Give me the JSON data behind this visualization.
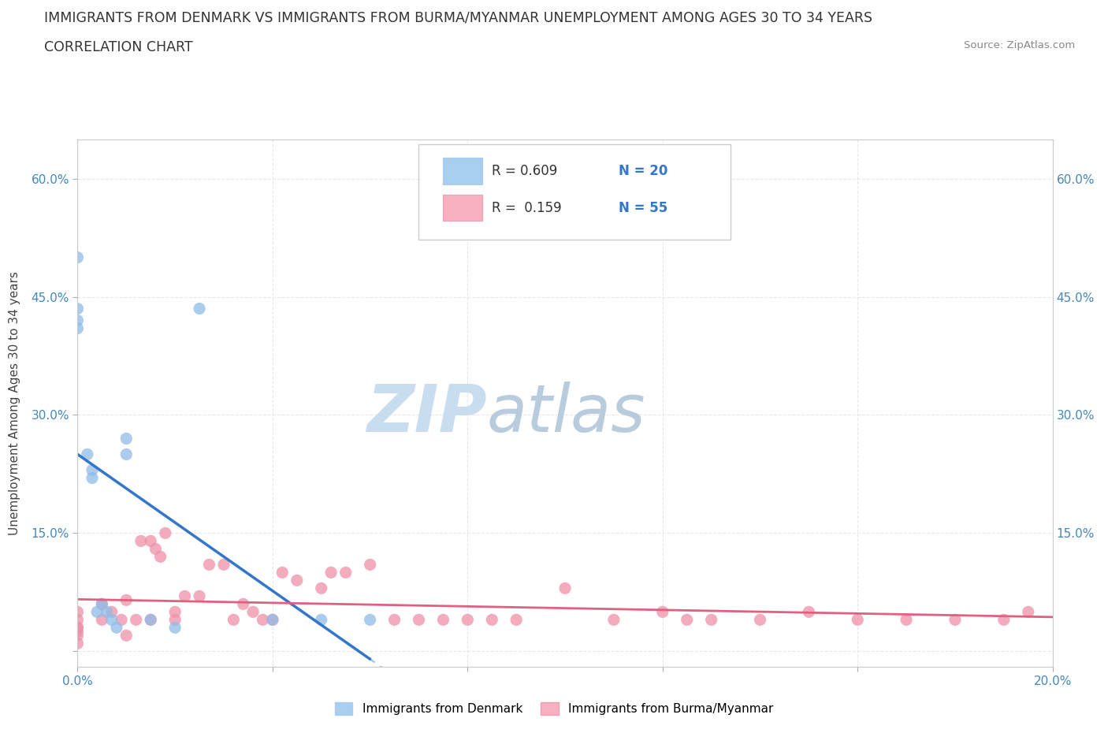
{
  "title_line1": "IMMIGRANTS FROM DENMARK VS IMMIGRANTS FROM BURMA/MYANMAR UNEMPLOYMENT AMONG AGES 30 TO 34 YEARS",
  "title_line2": "CORRELATION CHART",
  "source_text": "Source: ZipAtlas.com",
  "ylabel": "Unemployment Among Ages 30 to 34 years",
  "xlim": [
    0.0,
    0.2
  ],
  "ylim": [
    -0.02,
    0.65
  ],
  "xticks": [
    0.0,
    0.04,
    0.08,
    0.12,
    0.16,
    0.2
  ],
  "yticks": [
    0.0,
    0.15,
    0.3,
    0.45,
    0.6
  ],
  "xticklabels": [
    "0.0%",
    "",
    "",
    "",
    "",
    "20.0%"
  ],
  "yticklabels": [
    "",
    "15.0%",
    "30.0%",
    "45.0%",
    "60.0%"
  ],
  "denmark_scatter_color": "#90bce8",
  "burma_scatter_color": "#f090a8",
  "denmark_line_color": "#3377cc",
  "burma_line_color": "#e06080",
  "trendline_dash_color": "#a0c0e0",
  "watermark_color": "#d8e8f5",
  "grid_color": "#e8e8e8",
  "denmark_legend_color": "#a8cef0",
  "burma_legend_color": "#f8b0c0",
  "denmark_x": [
    0.0,
    0.0,
    0.0,
    0.0,
    0.002,
    0.003,
    0.005,
    0.006,
    0.007,
    0.008,
    0.01,
    0.01,
    0.015,
    0.02,
    0.025,
    0.04,
    0.05,
    0.06,
    0.003,
    0.004
  ],
  "denmark_y": [
    0.5,
    0.42,
    0.41,
    0.435,
    0.25,
    0.22,
    0.06,
    0.05,
    0.04,
    0.03,
    0.25,
    0.27,
    0.04,
    0.03,
    0.435,
    0.04,
    0.04,
    0.04,
    0.23,
    0.05
  ],
  "burma_x": [
    0.0,
    0.0,
    0.0,
    0.0,
    0.0,
    0.0,
    0.0,
    0.005,
    0.007,
    0.009,
    0.01,
    0.012,
    0.013,
    0.015,
    0.016,
    0.017,
    0.018,
    0.02,
    0.022,
    0.025,
    0.027,
    0.03,
    0.032,
    0.034,
    0.036,
    0.038,
    0.04,
    0.042,
    0.045,
    0.05,
    0.052,
    0.055,
    0.06,
    0.065,
    0.07,
    0.075,
    0.08,
    0.085,
    0.09,
    0.1,
    0.11,
    0.12,
    0.125,
    0.13,
    0.14,
    0.15,
    0.16,
    0.17,
    0.18,
    0.19,
    0.195,
    0.005,
    0.01,
    0.015,
    0.02
  ],
  "burma_y": [
    0.03,
    0.04,
    0.02,
    0.01,
    0.03,
    0.05,
    0.025,
    0.06,
    0.05,
    0.04,
    0.065,
    0.04,
    0.14,
    0.14,
    0.13,
    0.12,
    0.15,
    0.05,
    0.07,
    0.07,
    0.11,
    0.11,
    0.04,
    0.06,
    0.05,
    0.04,
    0.04,
    0.1,
    0.09,
    0.08,
    0.1,
    0.1,
    0.11,
    0.04,
    0.04,
    0.04,
    0.04,
    0.04,
    0.04,
    0.08,
    0.04,
    0.05,
    0.04,
    0.04,
    0.04,
    0.05,
    0.04,
    0.04,
    0.04,
    0.04,
    0.05,
    0.04,
    0.02,
    0.04,
    0.04
  ],
  "background_color": "#ffffff",
  "title_fontsize": 12.5,
  "label_fontsize": 11,
  "tick_fontsize": 11
}
